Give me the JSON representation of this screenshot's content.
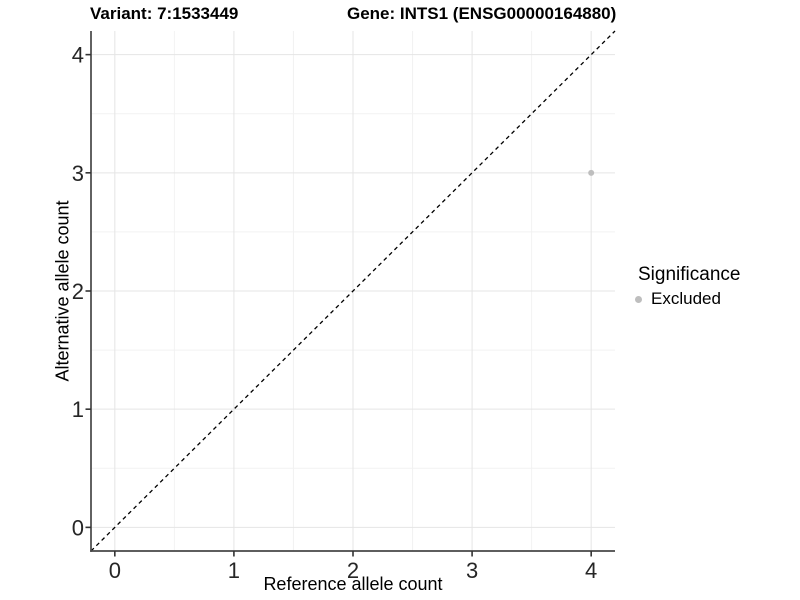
{
  "chart_data": {
    "type": "scatter",
    "title_left": "Variant: 7:1533449",
    "title_right": "Gene: INTS1 (ENSG00000164880)",
    "xlabel": "Reference allele count",
    "ylabel": "Alternative allele count",
    "xlim": [
      -0.2,
      4.2
    ],
    "ylim": [
      -0.2,
      4.2
    ],
    "xticks": [
      0,
      1,
      2,
      3,
      4
    ],
    "yticks": [
      0,
      1,
      2,
      3,
      4
    ],
    "grid": "major and minor gridlines, minor at 0.5 steps",
    "points": [
      {
        "x": 4,
        "y": 3,
        "series": "Excluded"
      }
    ],
    "identity_line": {
      "style": "dashed",
      "x1": -0.2,
      "y1": -0.2,
      "x2": 4.2,
      "y2": 4.2
    },
    "legend": {
      "position": "right",
      "title": "Significance",
      "items": [
        {
          "label": "Excluded",
          "color": "#bebebe"
        }
      ]
    }
  },
  "colors": {
    "background": "#ffffff",
    "grid_major": "#e5e5e5",
    "grid_minor": "#f2f2f2",
    "axis_line": "#474747",
    "tick_mark": "#333333",
    "tick_label": "#262626",
    "dashed_line": "#000000",
    "point": "#bebebe",
    "text": "#000000"
  }
}
